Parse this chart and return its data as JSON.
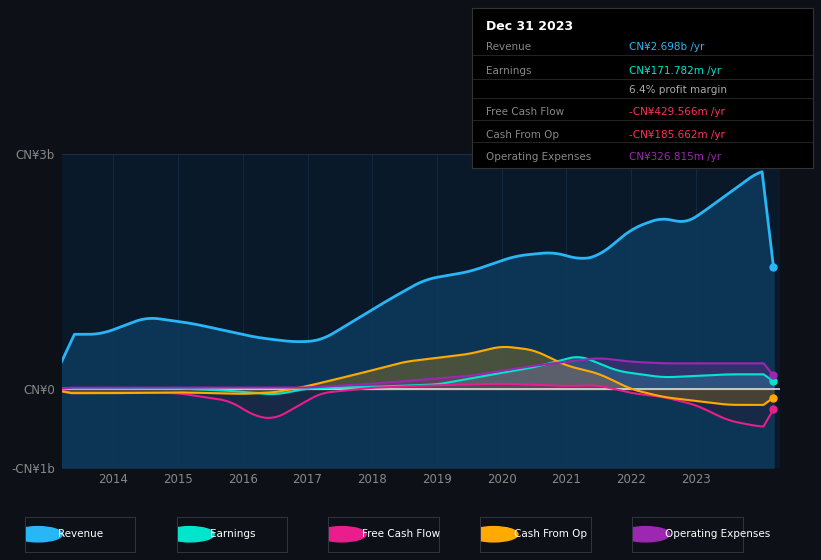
{
  "background_color": "#0d1117",
  "chart_bg_color": "#0a1929",
  "title": "Dec 31 2023",
  "ylim": [
    -1000,
    3000
  ],
  "ytick_positions": [
    -1000,
    0,
    3000
  ],
  "ytick_labels": [
    "-CN¥1b",
    "CN¥0",
    "CN¥3b"
  ],
  "xticks": [
    2014,
    2015,
    2016,
    2017,
    2018,
    2019,
    2020,
    2021,
    2022,
    2023
  ],
  "xlim": [
    2013.2,
    2024.3
  ],
  "series": {
    "revenue": {
      "color": "#29b6f6",
      "fill_color": "#0d3a5c",
      "lw": 2.0
    },
    "earnings": {
      "color": "#00e5cc",
      "lw": 1.5
    },
    "free_cash_flow": {
      "color": "#e91e8c",
      "lw": 1.5
    },
    "cash_from_op": {
      "color": "#ffaa00",
      "lw": 1.5
    },
    "operating_expenses": {
      "color": "#9c27b0",
      "lw": 1.5
    }
  },
  "legend": [
    {
      "label": "Revenue",
      "color": "#29b6f6"
    },
    {
      "label": "Earnings",
      "color": "#00e5cc"
    },
    {
      "label": "Free Cash Flow",
      "color": "#e91e8c"
    },
    {
      "label": "Cash From Op",
      "color": "#ffaa00"
    },
    {
      "label": "Operating Expenses",
      "color": "#9c27b0"
    }
  ],
  "info_rows": [
    {
      "label": "Revenue",
      "value": "CN¥2.698b /yr",
      "value_color": "#29b6f6"
    },
    {
      "label": "Earnings",
      "value": "CN¥171.782m /yr",
      "value_color": "#00e5cc"
    },
    {
      "label": "",
      "value": "6.4% profit margin",
      "value_color": "#aaaaaa"
    },
    {
      "label": "Free Cash Flow",
      "value": "-CN¥429.566m /yr",
      "value_color": "#ff3355"
    },
    {
      "label": "Cash From Op",
      "value": "-CN¥185.662m /yr",
      "value_color": "#ff3355"
    },
    {
      "label": "Operating Expenses",
      "value": "CN¥326.815m /yr",
      "value_color": "#9c27b0"
    }
  ],
  "grid_color": "#1a3550",
  "text_color": "#888888",
  "zero_line_color": "#dddddd"
}
